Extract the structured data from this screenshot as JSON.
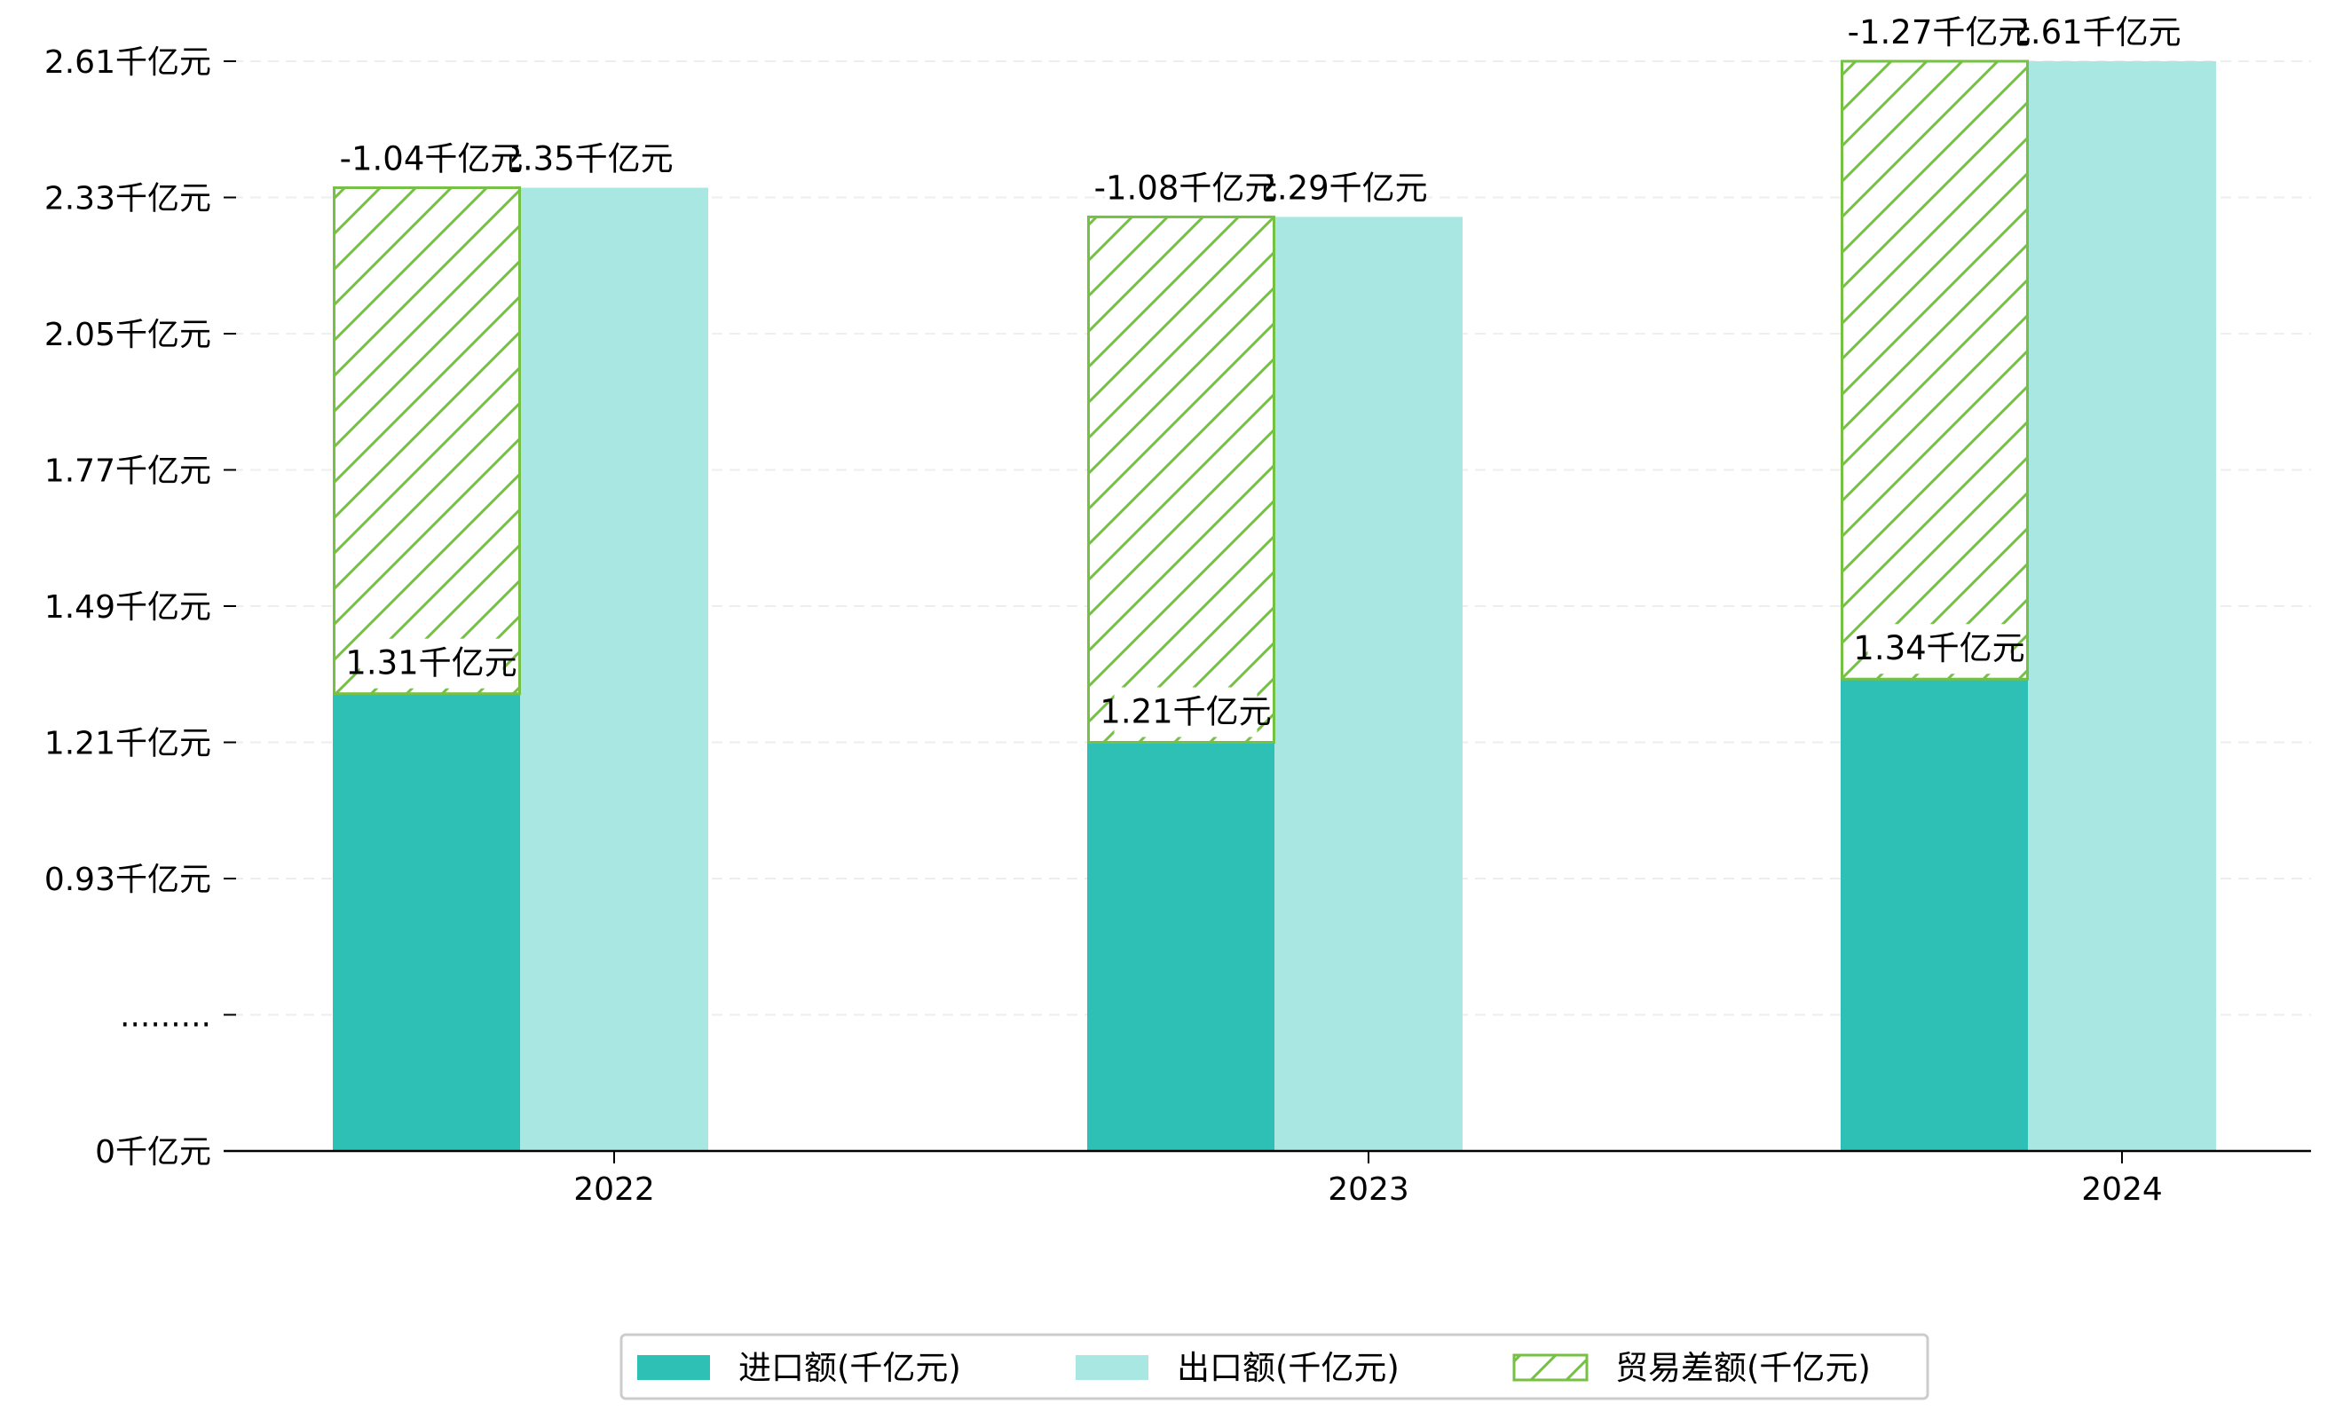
{
  "chart_data": {
    "type": "bar",
    "title": "",
    "xlabel": "",
    "ylabel": "",
    "categories": [
      "2022",
      "2023",
      "2024"
    ],
    "series": [
      {
        "name": "进口额(千亿元)",
        "values": [
          1.31,
          1.21,
          1.34
        ],
        "labels": [
          "1.31千亿元",
          "1.21千亿元",
          "1.34千亿元"
        ],
        "color": "#2EC0B4"
      },
      {
        "name": "出口额(千亿元)",
        "values": [
          2.35,
          2.29,
          2.61
        ],
        "labels": [
          "2.35千亿元",
          "2.29千亿元",
          "2.61千亿元"
        ],
        "color": "#A8E7E2"
      },
      {
        "name": "贸易差额(千亿元)",
        "values": [
          -1.04,
          -1.08,
          -1.27
        ],
        "labels": [
          "-1.04千亿元",
          "-1.08千亿元",
          "-1.27千亿元"
        ],
        "color": "#76C043",
        "pattern": "hatch",
        "stacked_on": "进口额(千亿元)"
      }
    ],
    "y_ticks": [
      {
        "value": 0.37,
        "label": "0千亿元"
      },
      {
        "value": 0.65,
        "label": "........."
      },
      {
        "value": 0.93,
        "label": "0.93千亿元"
      },
      {
        "value": 1.21,
        "label": "1.21千亿元"
      },
      {
        "value": 1.49,
        "label": "1.49千亿元"
      },
      {
        "value": 1.77,
        "label": "1.77千亿元"
      },
      {
        "value": 2.05,
        "label": "2.05千亿元"
      },
      {
        "value": 2.33,
        "label": "2.33千亿元"
      },
      {
        "value": 2.61,
        "label": "2.61千亿元"
      }
    ],
    "ylim": [
      0.37,
      2.61
    ],
    "axis_break": "y-axis between 0 and 0.93 compressed",
    "grid": "horizontal dashed",
    "legend_position": "bottom-center"
  }
}
